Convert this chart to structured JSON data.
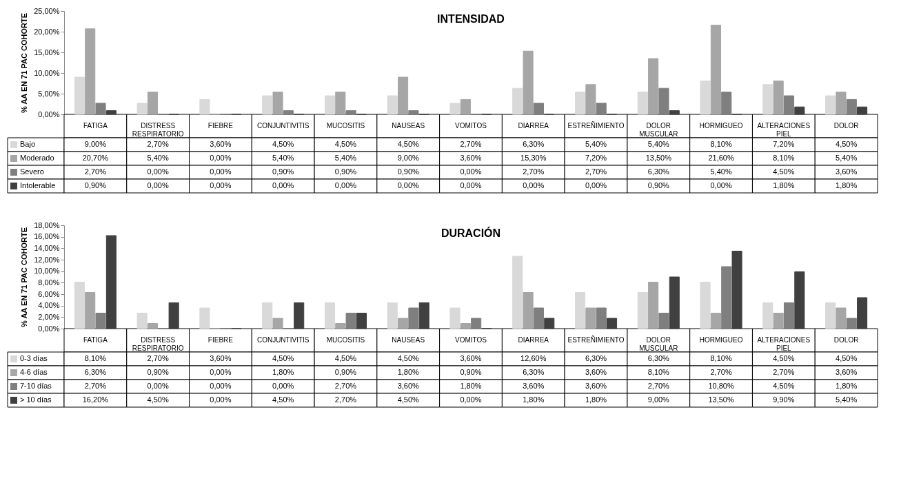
{
  "chart_data": [
    {
      "type": "bar",
      "title": "INTENSIDAD",
      "ylabel": "% AA EN 71 PAC COHORTE",
      "grid": false,
      "legend": "bottom",
      "ylim": [
        0,
        25
      ],
      "yticks": [
        {
          "value": 0,
          "label": "0,00%"
        },
        {
          "value": 5,
          "label": "5,00%"
        },
        {
          "value": 10,
          "label": "10,00%"
        },
        {
          "value": 15,
          "label": "15,00%"
        },
        {
          "value": 20,
          "label": "20,00%"
        },
        {
          "value": 25,
          "label": "25,00%"
        }
      ],
      "categories": [
        "FATIGA",
        "DISTRESS RESPIRATORIO",
        "FIEBRE",
        "CONJUNTIVITIS",
        "MUCOSITIS",
        "NAUSEAS",
        "VOMITOS",
        "DIARREA",
        "ESTREÑIMIENTO",
        "DOLOR MUSCULAR",
        "HORMIGUEO",
        "ALTERACIONES PIEL",
        "DOLOR"
      ],
      "series": [
        {
          "name": "Bajo",
          "color": "#d9d9d9",
          "values": [
            9.0,
            2.7,
            3.6,
            4.5,
            4.5,
            4.5,
            2.7,
            6.3,
            5.4,
            5.4,
            8.1,
            7.2,
            4.5
          ],
          "value_labels": [
            "9,00%",
            "2,70%",
            "3,60%",
            "4,50%",
            "4,50%",
            "4,50%",
            "2,70%",
            "6,30%",
            "5,40%",
            "5,40%",
            "8,10%",
            "7,20%",
            "4,50%"
          ]
        },
        {
          "name": "Moderado",
          "color": "#a6a6a6",
          "values": [
            20.7,
            5.4,
            0,
            5.4,
            5.4,
            9.0,
            3.6,
            15.3,
            7.2,
            13.5,
            21.6,
            8.1,
            5.4
          ],
          "value_labels": [
            "20,70%",
            "5,40%",
            "0,00%",
            "5,40%",
            "5,40%",
            "9,00%",
            "3,60%",
            "15,30%",
            "7,20%",
            "13,50%",
            "21,60%",
            "8,10%",
            "5,40%"
          ]
        },
        {
          "name": "Severo",
          "color": "#7f7f7f",
          "values": [
            2.7,
            0,
            0,
            0.9,
            0.9,
            0.9,
            0,
            2.7,
            2.7,
            6.3,
            5.4,
            4.5,
            3.6
          ],
          "value_labels": [
            "2,70%",
            "0,00%",
            "0,00%",
            "0,90%",
            "0,90%",
            "0,90%",
            "0,00%",
            "2,70%",
            "2,70%",
            "6,30%",
            "5,40%",
            "4,50%",
            "3,60%"
          ]
        },
        {
          "name": "Intolerable",
          "color": "#404040",
          "values": [
            0.9,
            0,
            0,
            0,
            0,
            0,
            0,
            0,
            0,
            0.9,
            0,
            1.8,
            1.8
          ],
          "value_labels": [
            "0,90%",
            "0,00%",
            "0,00%",
            "0,00%",
            "0,00%",
            "0,00%",
            "0,00%",
            "0,00%",
            "0,00%",
            "0,90%",
            "0,00%",
            "1,80%",
            "1,80%"
          ]
        }
      ]
    },
    {
      "type": "bar",
      "title": "DURACIÓN",
      "ylabel": "% AA EN 71 PAC COHORTE",
      "grid": false,
      "legend": "bottom",
      "ylim": [
        0,
        18
      ],
      "yticks": [
        {
          "value": 0,
          "label": "0,00%"
        },
        {
          "value": 2,
          "label": "2,00%"
        },
        {
          "value": 4,
          "label": "4,00%"
        },
        {
          "value": 6,
          "label": "6,00%"
        },
        {
          "value": 8,
          "label": "8,00%"
        },
        {
          "value": 10,
          "label": "10,00%"
        },
        {
          "value": 12,
          "label": "12,00%"
        },
        {
          "value": 14,
          "label": "14,00%"
        },
        {
          "value": 16,
          "label": "16,00%"
        },
        {
          "value": 18,
          "label": "18,00%"
        }
      ],
      "categories": [
        "FATIGA",
        "DISTRESS RESPIRATORIO",
        "FIEBRE",
        "CONJUNTIVITIS",
        "MUCOSITIS",
        "NAUSEAS",
        "VOMITOS",
        "DIARREA",
        "ESTREÑIMIENTO",
        "DOLOR MUSCULAR",
        "HORMIGUEO",
        "ALTERACIONES PIEL",
        "DOLOR"
      ],
      "series": [
        {
          "name": "0-3 días",
          "color": "#d9d9d9",
          "values": [
            8.1,
            2.7,
            3.6,
            4.5,
            4.5,
            4.5,
            3.6,
            12.6,
            6.3,
            6.3,
            8.1,
            4.5,
            4.5
          ],
          "value_labels": [
            "8,10%",
            "2,70%",
            "3,60%",
            "4,50%",
            "4,50%",
            "4,50%",
            "3,60%",
            "12,60%",
            "6,30%",
            "6,30%",
            "8,10%",
            "4,50%",
            "4,50%"
          ]
        },
        {
          "name": "4-6 días",
          "color": "#a6a6a6",
          "values": [
            6.3,
            0.9,
            0,
            1.8,
            0.9,
            1.8,
            0.9,
            6.3,
            3.6,
            8.1,
            2.7,
            2.7,
            3.6
          ],
          "value_labels": [
            "6,30%",
            "0,90%",
            "0,00%",
            "1,80%",
            "0,90%",
            "1,80%",
            "0,90%",
            "6,30%",
            "3,60%",
            "8,10%",
            "2,70%",
            "2,70%",
            "3,60%"
          ]
        },
        {
          "name": "7-10 días",
          "color": "#7f7f7f",
          "values": [
            2.7,
            0,
            0,
            0,
            2.7,
            3.6,
            1.8,
            3.6,
            3.6,
            2.7,
            10.8,
            4.5,
            1.8
          ],
          "value_labels": [
            "2,70%",
            "0,00%",
            "0,00%",
            "0,00%",
            "2,70%",
            "3,60%",
            "1,80%",
            "3,60%",
            "3,60%",
            "2,70%",
            "10,80%",
            "4,50%",
            "1,80%"
          ]
        },
        {
          "name": "> 10 días",
          "color": "#404040",
          "values": [
            16.2,
            4.5,
            0,
            4.5,
            2.7,
            4.5,
            0,
            1.8,
            1.8,
            9.0,
            13.5,
            9.9,
            5.4
          ],
          "value_labels": [
            "16,20%",
            "4,50%",
            "0,00%",
            "4,50%",
            "2,70%",
            "4,50%",
            "0,00%",
            "1,80%",
            "1,80%",
            "9,00%",
            "13,50%",
            "9,90%",
            "5,40%"
          ]
        }
      ]
    }
  ]
}
